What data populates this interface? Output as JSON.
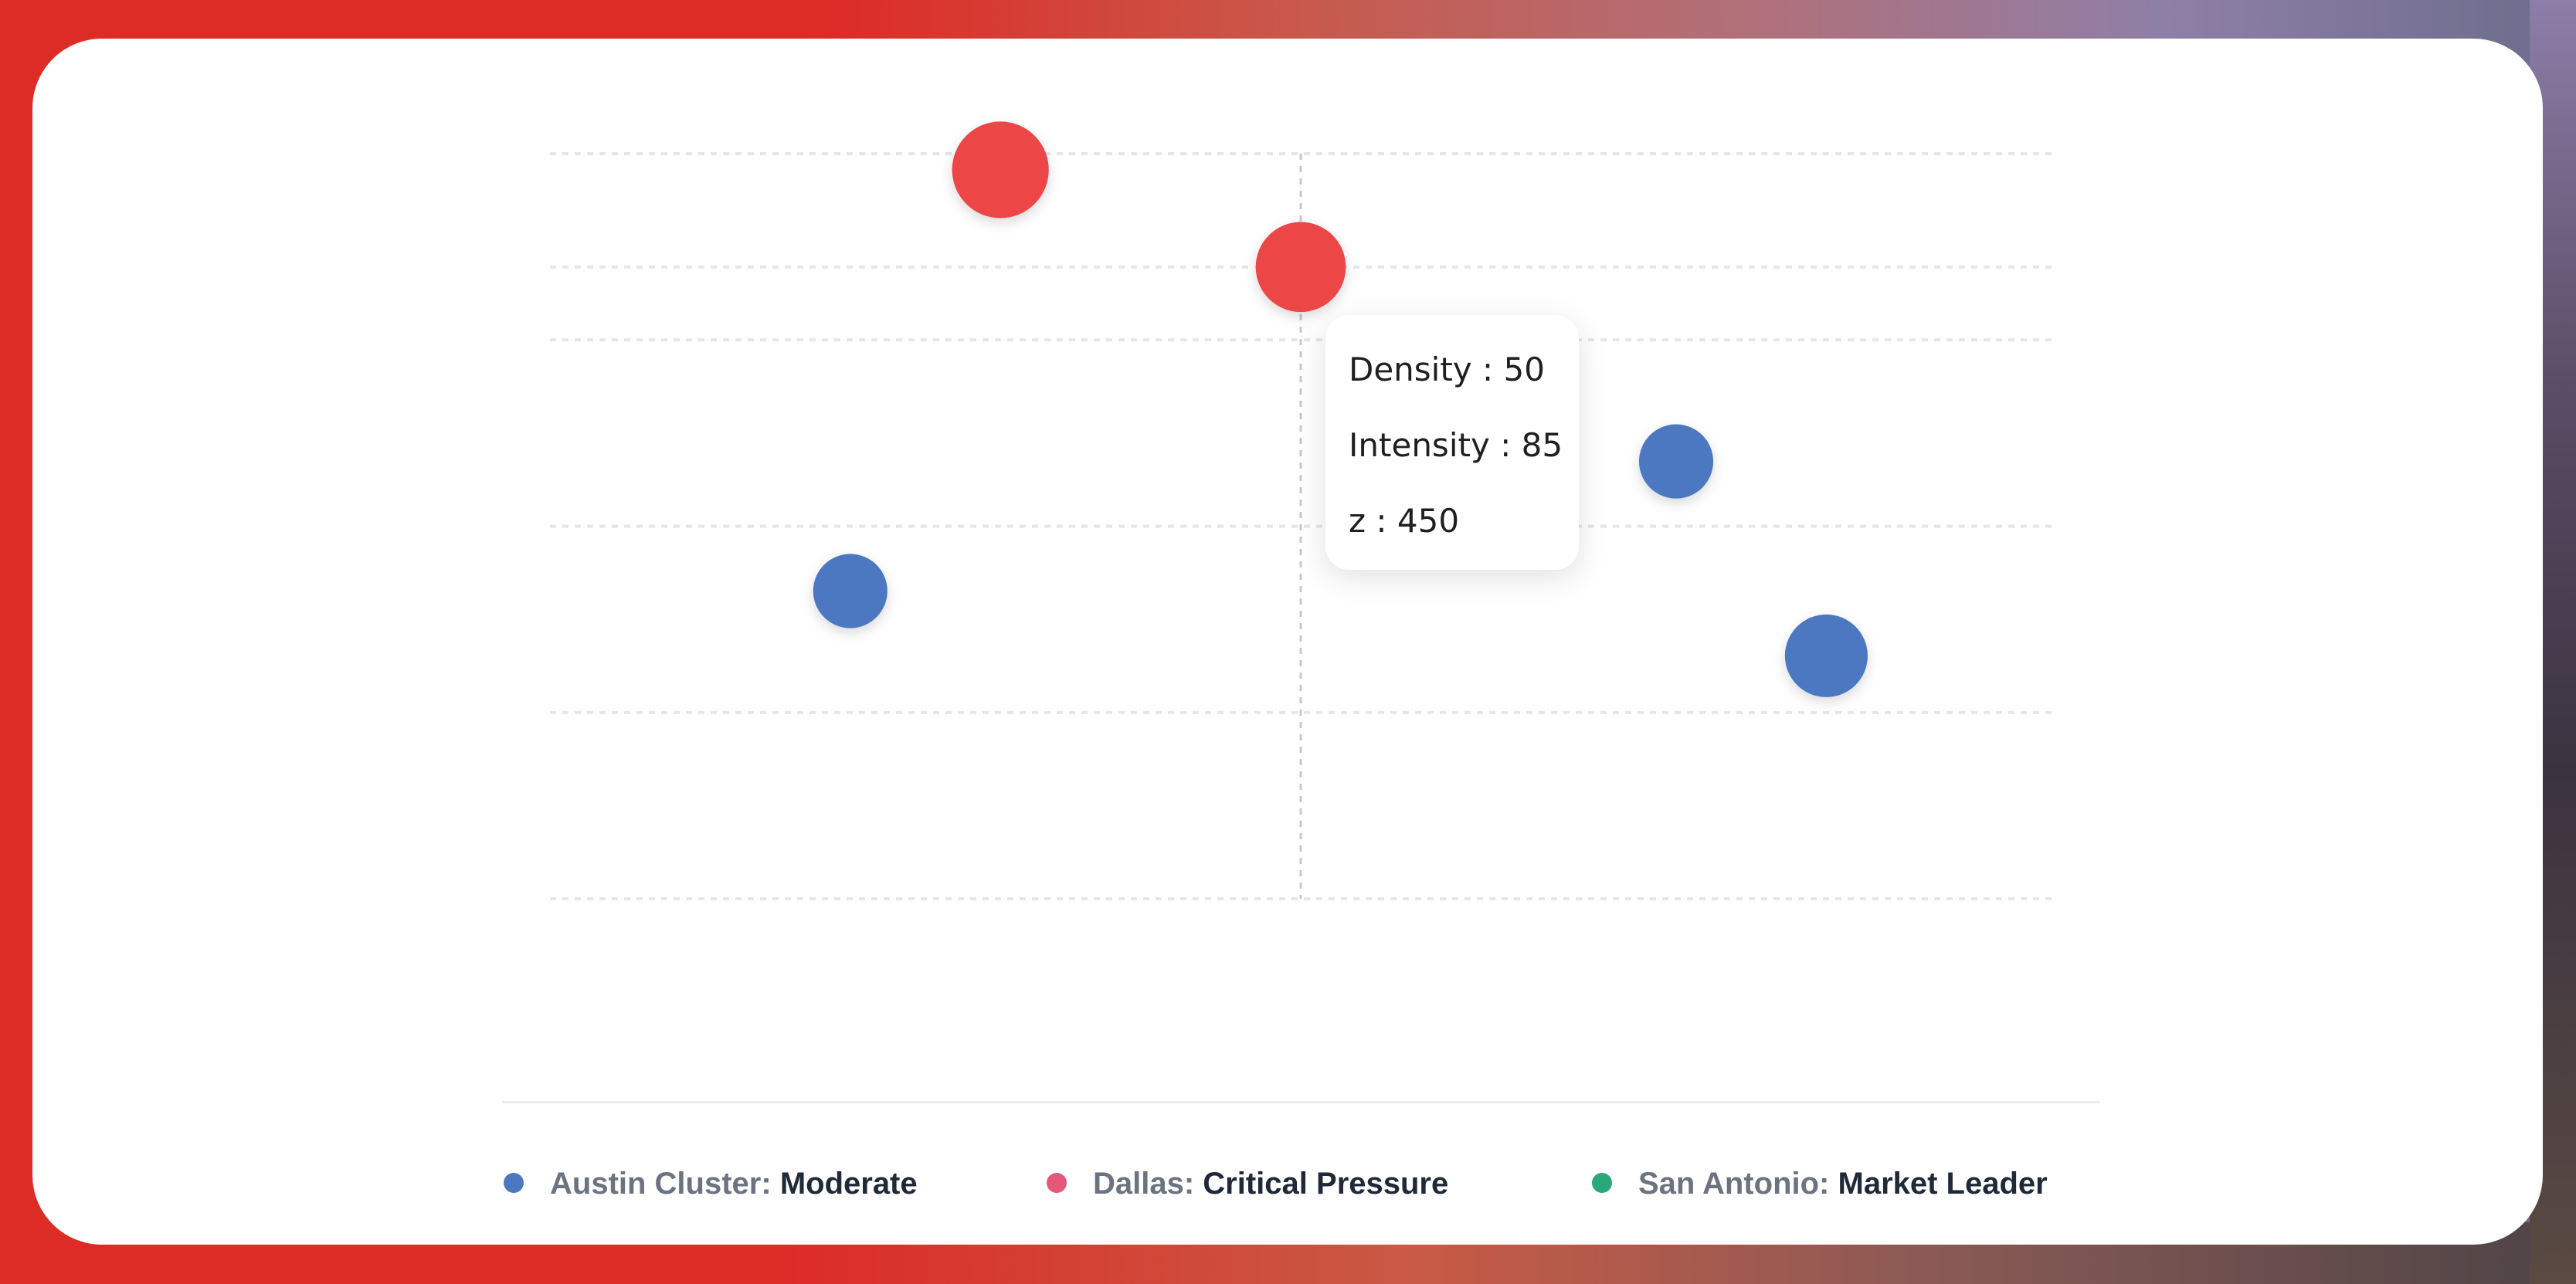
{
  "chart_data": {
    "type": "scatter",
    "title": "",
    "xlabel": "",
    "ylabel": "",
    "grid": true,
    "xlim": [
      0,
      100
    ],
    "ylim": [
      40,
      95
    ],
    "series": [
      {
        "name": "Austin Cluster",
        "color": "#4b78c1",
        "points": [
          {
            "x": 20,
            "y": 65,
            "z": 250
          },
          {
            "x": 75,
            "y": 73,
            "z": 250
          },
          {
            "x": 85,
            "y": 61,
            "z": 350
          }
        ]
      },
      {
        "name": "Dallas",
        "color": "#ec4646",
        "points": [
          {
            "x": 30,
            "y": 91,
            "z": 550
          },
          {
            "x": 50,
            "y": 85,
            "z": 450
          }
        ]
      },
      {
        "name": "San Antonio",
        "color": "#2aa87a",
        "points": []
      }
    ]
  },
  "tooltip": {
    "rows": [
      "Density : 50",
      "Intensity : 85",
      "z : 450"
    ]
  },
  "legend": [
    {
      "name": "Austin Cluster:",
      "status": "Moderate",
      "color": "#4b78c1"
    },
    {
      "name": "Dallas:",
      "status": "Critical Pressure",
      "color": "#e5587a"
    },
    {
      "name": "San Antonio:",
      "status": "Market Leader",
      "color": "#2aa87a"
    }
  ]
}
